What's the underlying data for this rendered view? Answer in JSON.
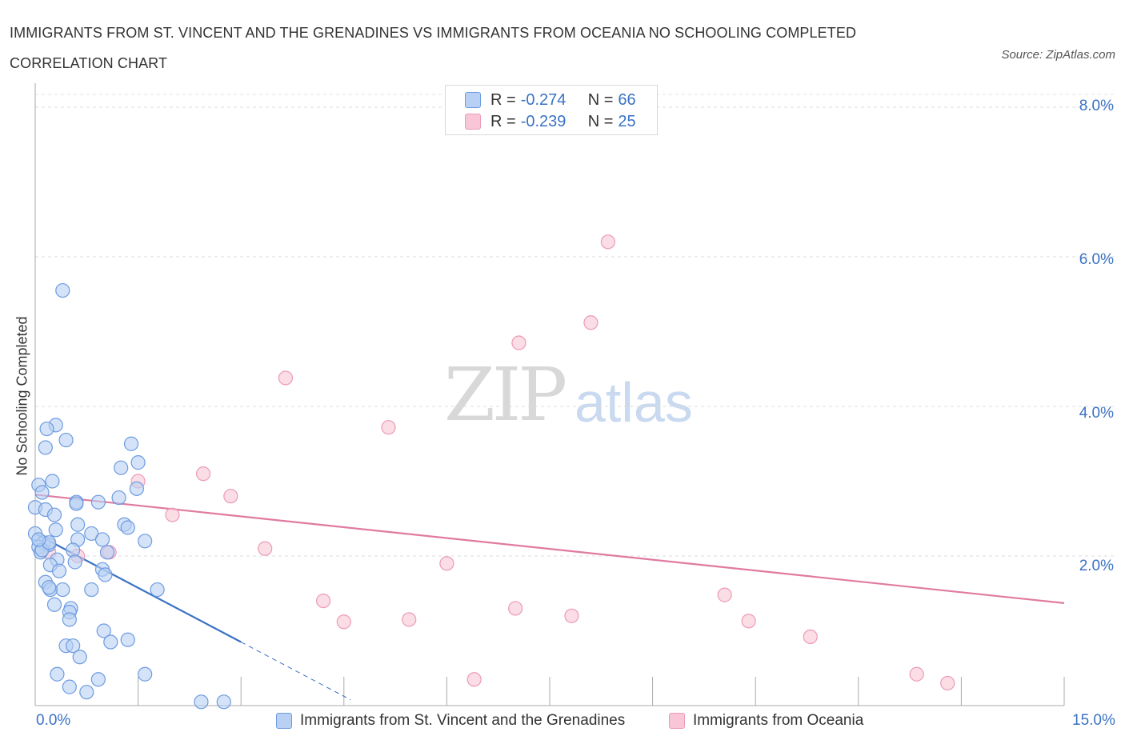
{
  "title": "IMMIGRANTS FROM ST. VINCENT AND THE GRENADINES VS IMMIGRANTS FROM OCEANIA NO SCHOOLING COMPLETED CORRELATION CHART",
  "source": "Source: ZipAtlas.com",
  "watermark": {
    "zip": "ZIP",
    "atlas": "atlas"
  },
  "colors": {
    "blue": "#3a72c4",
    "blue_fill": "#b7d0f3",
    "blue_stroke": "#6d9be0",
    "pink": "#e07aa0",
    "pink_fill": "#f8c6d6",
    "pink_stroke": "#ec9ab7"
  },
  "legend": {
    "r_label": "R = ",
    "n_label": "N = ",
    "series": [
      {
        "r": "-0.274",
        "n": "66"
      },
      {
        "r": "-0.239",
        "n": "25"
      }
    ]
  },
  "chart_data": {
    "type": "scatter",
    "title": "IMMIGRANTS FROM ST. VINCENT AND THE GRENADINES VS IMMIGRANTS FROM OCEANIA NO SCHOOLING COMPLETED CORRELATION CHART",
    "xlabel": "",
    "ylabel": "No Schooling Completed",
    "xlim": [
      0,
      15
    ],
    "ylim": [
      0,
      8
    ],
    "x_tick_labels": [
      "0.0%",
      "15.0%"
    ],
    "y_ticks": [
      2,
      4,
      6,
      8
    ],
    "y_tick_labels": [
      "2.0%",
      "4.0%",
      "6.0%",
      "8.0%"
    ],
    "grid": true,
    "series": [
      {
        "name": "Immigrants from St. Vincent and the Grenadines",
        "r": -0.274,
        "n": 66,
        "trend": {
          "x0": 0.0,
          "y0": 2.3,
          "x1": 3.0,
          "y1": 0.85,
          "dash_to_x": 4.6
        },
        "points": [
          [
            0.4,
            5.55
          ],
          [
            0.3,
            3.75
          ],
          [
            0.17,
            3.7
          ],
          [
            0.15,
            3.45
          ],
          [
            0.45,
            3.55
          ],
          [
            1.4,
            3.5
          ],
          [
            1.5,
            3.25
          ],
          [
            1.25,
            3.18
          ],
          [
            0.05,
            2.95
          ],
          [
            0.25,
            3.0
          ],
          [
            0.1,
            2.85
          ],
          [
            0.6,
            2.72
          ],
          [
            0.92,
            2.72
          ],
          [
            1.22,
            2.78
          ],
          [
            1.48,
            2.9
          ],
          [
            0.6,
            2.7
          ],
          [
            0.0,
            2.65
          ],
          [
            0.15,
            2.62
          ],
          [
            0.28,
            2.55
          ],
          [
            0.62,
            2.42
          ],
          [
            1.3,
            2.42
          ],
          [
            1.35,
            2.38
          ],
          [
            0.0,
            2.3
          ],
          [
            0.3,
            2.35
          ],
          [
            0.82,
            2.3
          ],
          [
            0.98,
            2.22
          ],
          [
            0.62,
            2.22
          ],
          [
            1.6,
            2.2
          ],
          [
            0.12,
            2.18
          ],
          [
            0.05,
            2.12
          ],
          [
            0.2,
            2.15
          ],
          [
            0.08,
            2.05
          ],
          [
            0.55,
            2.08
          ],
          [
            0.32,
            1.95
          ],
          [
            0.58,
            1.92
          ],
          [
            1.05,
            2.05
          ],
          [
            0.22,
            1.88
          ],
          [
            0.35,
            1.8
          ],
          [
            0.98,
            1.82
          ],
          [
            1.02,
            1.75
          ],
          [
            0.15,
            1.65
          ],
          [
            0.4,
            1.55
          ],
          [
            0.22,
            1.55
          ],
          [
            0.2,
            1.58
          ],
          [
            0.82,
            1.55
          ],
          [
            1.78,
            1.55
          ],
          [
            0.28,
            1.35
          ],
          [
            0.52,
            1.3
          ],
          [
            0.5,
            1.25
          ],
          [
            0.5,
            1.15
          ],
          [
            1.0,
            1.0
          ],
          [
            0.45,
            0.8
          ],
          [
            0.55,
            0.8
          ],
          [
            1.1,
            0.85
          ],
          [
            1.35,
            0.88
          ],
          [
            0.65,
            0.65
          ],
          [
            0.32,
            0.42
          ],
          [
            1.6,
            0.42
          ],
          [
            0.92,
            0.35
          ],
          [
            0.5,
            0.25
          ],
          [
            0.75,
            0.18
          ],
          [
            2.42,
            0.05
          ],
          [
            2.75,
            0.05
          ],
          [
            0.1,
            2.08
          ],
          [
            0.2,
            2.18
          ],
          [
            0.05,
            2.22
          ]
        ]
      },
      {
        "name": "Immigrants from Oceania",
        "r": -0.239,
        "n": 25,
        "trend": {
          "x0": 0.0,
          "y0": 2.82,
          "x1": 15.0,
          "y1": 1.37
        },
        "points": [
          [
            8.35,
            6.2
          ],
          [
            8.1,
            5.12
          ],
          [
            7.05,
            4.85
          ],
          [
            3.65,
            4.38
          ],
          [
            5.15,
            3.72
          ],
          [
            2.45,
            3.1
          ],
          [
            1.5,
            3.0
          ],
          [
            2.85,
            2.8
          ],
          [
            2.0,
            2.55
          ],
          [
            3.35,
            2.1
          ],
          [
            1.08,
            2.05
          ],
          [
            0.2,
            2.05
          ],
          [
            0.62,
            2.0
          ],
          [
            6.0,
            1.9
          ],
          [
            10.05,
            1.48
          ],
          [
            4.2,
            1.4
          ],
          [
            7.0,
            1.3
          ],
          [
            7.82,
            1.2
          ],
          [
            4.5,
            1.12
          ],
          [
            5.45,
            1.15
          ],
          [
            10.4,
            1.13
          ],
          [
            11.3,
            0.92
          ],
          [
            6.4,
            0.35
          ],
          [
            12.85,
            0.42
          ],
          [
            13.3,
            0.3
          ]
        ]
      }
    ]
  }
}
